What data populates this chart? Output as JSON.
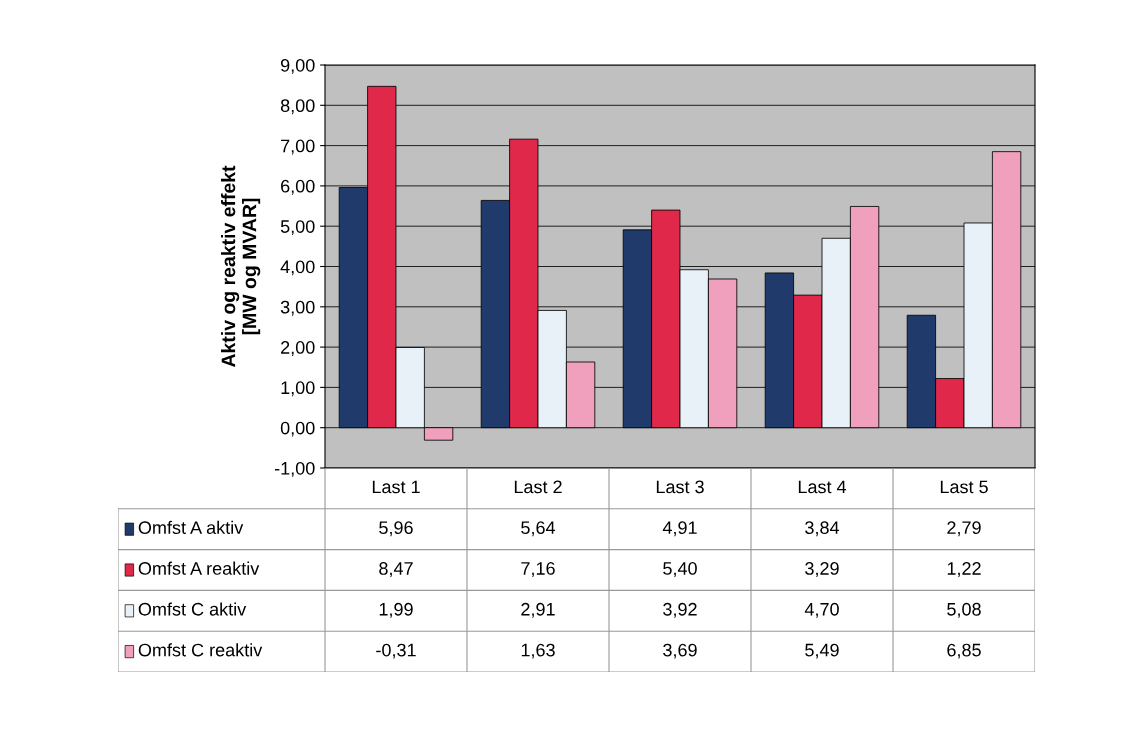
{
  "chart_data": {
    "type": "bar",
    "ylabel": "Aktiv og reaktiv effekt\n[MW og MVAR]",
    "categories": [
      "Last 1",
      "Last 2",
      "Last 3",
      "Last 4",
      "Last 5"
    ],
    "series": [
      {
        "name": "Omfst A aktiv",
        "color": "#1f3a6b",
        "values": [
          5.96,
          5.64,
          4.91,
          3.84,
          2.79
        ],
        "value_labels": [
          "5,96",
          "5,64",
          "4,91",
          "3,84",
          "2,79"
        ]
      },
      {
        "name": "Omfst A reaktiv",
        "color": "#e0294a",
        "values": [
          8.47,
          7.16,
          5.4,
          3.29,
          1.22
        ],
        "value_labels": [
          "8,47",
          "7,16",
          "5,40",
          "3,29",
          "1,22"
        ]
      },
      {
        "name": "Omfst C aktiv",
        "color": "#e8f0f8",
        "values": [
          1.99,
          2.91,
          3.92,
          4.7,
          5.08
        ],
        "value_labels": [
          "1,99",
          "2,91",
          "3,92",
          "4,70",
          "5,08"
        ]
      },
      {
        "name": "Omfst C reaktiv",
        "color": "#f0a0bc",
        "values": [
          -0.31,
          1.63,
          3.69,
          5.49,
          6.85
        ],
        "value_labels": [
          "-0,31",
          "1,63",
          "3,69",
          "5,49",
          "6,85"
        ]
      }
    ],
    "ylim": [
      -1,
      9
    ],
    "yticks": [
      {
        "value": -1,
        "label": "-1,00"
      },
      {
        "value": 0,
        "label": "0,00"
      },
      {
        "value": 1,
        "label": "1,00"
      },
      {
        "value": 2,
        "label": "2,00"
      },
      {
        "value": 3,
        "label": "3,00"
      },
      {
        "value": 4,
        "label": "4,00"
      },
      {
        "value": 5,
        "label": "5,00"
      },
      {
        "value": 6,
        "label": "6,00"
      },
      {
        "value": 7,
        "label": "7,00"
      },
      {
        "value": 8,
        "label": "8,00"
      },
      {
        "value": 9,
        "label": "9,00"
      }
    ],
    "grid": "y",
    "legend": "bottom left"
  }
}
